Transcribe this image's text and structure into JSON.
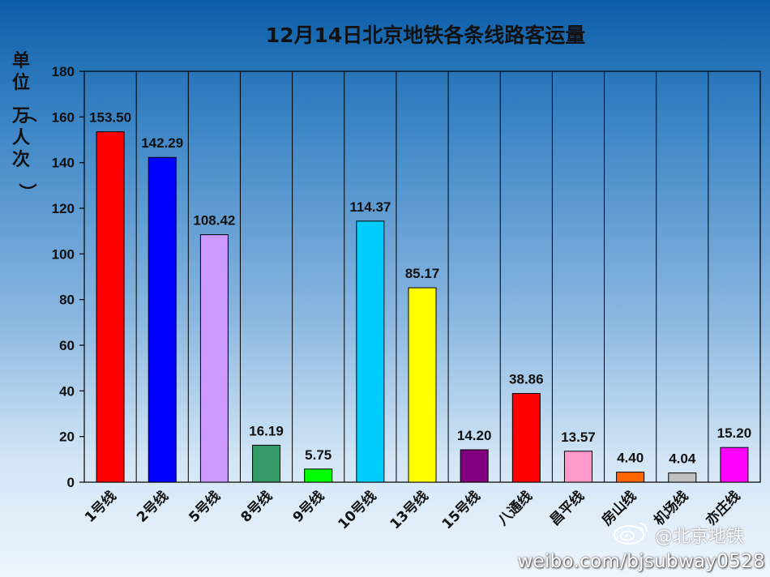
{
  "chart_data": {
    "type": "bar",
    "title": "12月14日北京地铁各条线路客运量",
    "ylabel": "单位（万人次）",
    "ylim": [
      0,
      180
    ],
    "yticks": [
      0,
      20,
      40,
      60,
      80,
      100,
      120,
      140,
      160,
      180
    ],
    "ytick_labels": [
      "0",
      "20",
      "40",
      "60",
      "80",
      "100",
      "120",
      "140",
      "160",
      "180"
    ],
    "categories": [
      "1号线",
      "2号线",
      "5号线",
      "8号线",
      "9号线",
      "10号线",
      "13号线",
      "15号线",
      "八通线",
      "昌平线",
      "房山线",
      "机场线",
      "亦庄线"
    ],
    "values": [
      153.5,
      142.29,
      108.42,
      16.19,
      5.75,
      114.37,
      85.17,
      14.2,
      38.86,
      13.57,
      4.4,
      4.04,
      15.2
    ],
    "value_labels": [
      "153.50",
      "142.29",
      "108.42",
      "16.19",
      "5.75",
      "114.37",
      "85.17",
      "14.20",
      "38.86",
      "13.57",
      "4.40",
      "4.04",
      "15.20"
    ],
    "colors": [
      "#ff0000",
      "#0000ff",
      "#cc99ff",
      "#339966",
      "#00ff00",
      "#00ccff",
      "#ffff00",
      "#800080",
      "#ff0000",
      "#ff99cc",
      "#ff6600",
      "#c0c0c0",
      "#ff00ff"
    ],
    "grid": "vertical",
    "legend": "none"
  },
  "watermark": {
    "name": "@北京地铁",
    "url": "weibo.com/bjsubway0528",
    "logo_icon": "weibo-logo-icon"
  }
}
